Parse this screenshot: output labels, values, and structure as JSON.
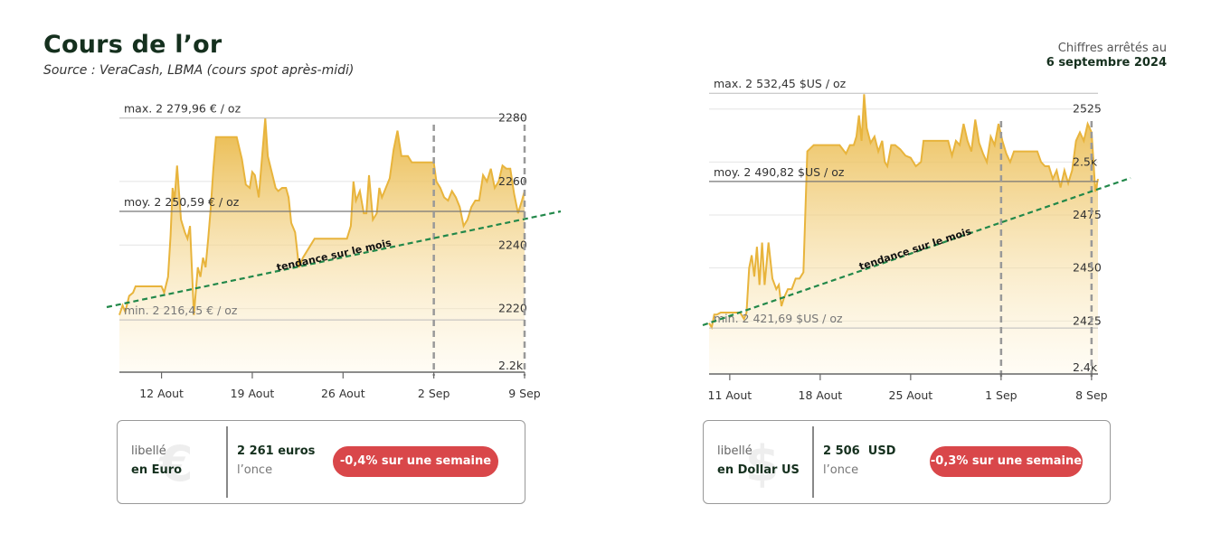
{
  "header": {
    "title": "Cours de l’or",
    "source": "Source : VeraCash, LBMA (cours spot après-midi)",
    "asof_line1": "Chiffres arrêtés au",
    "asof_line2": "6 septembre 2024"
  },
  "colors": {
    "gold": "#e8b43c",
    "trend": "#22884a",
    "badge": "#d9474a",
    "dark": "#15301e"
  },
  "panels": [
    {
      "max_label": "max. 2 279,96 € / oz",
      "avg_label": "moy. 2 250,59 € / oz",
      "min_label": "min. 2 216,45 € / oz",
      "trend_label": "tendance sur le mois",
      "box": {
        "label1": "libellé",
        "label2": "en Euro",
        "value": "2 261 euros",
        "unit": "l’once",
        "badge": "-0,4% sur une semaine",
        "ghost_icon": "euro-icon",
        "ghost": "€"
      }
    },
    {
      "max_label": "max. 2 532,45 $US / oz",
      "avg_label": "moy. 2 490,82 $US / oz",
      "min_label": "min. 2 421,69 $US / oz",
      "trend_label": "tendance sur le mois",
      "box": {
        "label1": "libellé",
        "label2": "en Dollar US",
        "value": "2 506  USD",
        "unit": "l’once",
        "badge": "-0,3% sur une semaine",
        "ghost_icon": "dollar-icon",
        "ghost": "$"
      }
    }
  ],
  "chart_data": [
    {
      "type": "area",
      "title": "",
      "currency": "EUR",
      "ylim": [
        2200,
        2283
      ],
      "yticks": [
        2200,
        2220,
        2240,
        2260,
        2280
      ],
      "ytick_labels": [
        "2.2k",
        "2220",
        "2240",
        "2260",
        "2280"
      ],
      "xticks": [
        {
          "x": 12,
          "label": "12 Aout"
        },
        {
          "x": 19,
          "label": "19 Aout"
        },
        {
          "x": 26,
          "label": "26 Aout"
        },
        {
          "x": 33,
          "label": "2 Sep"
        },
        {
          "x": 40,
          "label": "9 Sep"
        }
      ],
      "xlim": [
        8.75,
        40
      ],
      "x": [
        8.75,
        9.0,
        9.2,
        9.5,
        9.8,
        10.0,
        10.3,
        10.6,
        11.0,
        11.5,
        12.0,
        12.2,
        12.5,
        12.7,
        12.85,
        13.0,
        13.2,
        13.5,
        13.8,
        14.0,
        14.2,
        14.5,
        14.8,
        15.0,
        15.2,
        15.4,
        15.6,
        15.8,
        16.0,
        16.2,
        16.5,
        16.8,
        17.0,
        17.3,
        17.6,
        17.8,
        18.2,
        18.5,
        18.8,
        19.0,
        19.2,
        19.5,
        19.8,
        20.0,
        20.2,
        20.5,
        20.8,
        21.0,
        21.3,
        21.6,
        21.8,
        22.0,
        22.3,
        22.6,
        22.9,
        23.2,
        23.5,
        23.8,
        24.0,
        24.3,
        24.6,
        24.8,
        25.0,
        25.2,
        25.5,
        25.8,
        26.0,
        26.3,
        26.6,
        26.8,
        27.0,
        27.3,
        27.6,
        27.8,
        28.0,
        28.3,
        28.6,
        28.8,
        29.0,
        29.3,
        29.6,
        29.9,
        30.2,
        30.5,
        30.7,
        31.0,
        31.3,
        31.6,
        31.9,
        32.2,
        32.5,
        32.8,
        33.0,
        33.2,
        33.5,
        33.8,
        34.1,
        34.4,
        34.7,
        35.0,
        35.3,
        35.6,
        35.9,
        36.2,
        36.5,
        36.8,
        37.1,
        37.4,
        37.7,
        38.0,
        38.3,
        38.6,
        38.9,
        39.2,
        39.5,
        39.8,
        40.0
      ],
      "y": [
        2218,
        2221,
        2219,
        2224,
        2225,
        2227,
        2227,
        2227,
        2227,
        2227,
        2227,
        2225,
        2230,
        2243,
        2258,
        2254,
        2265,
        2248,
        2244,
        2242,
        2246,
        2218,
        2233,
        2230,
        2236,
        2233,
        2242,
        2252,
        2264,
        2274,
        2274,
        2274,
        2274,
        2274,
        2274,
        2274,
        2267,
        2259,
        2258,
        2263,
        2262,
        2255,
        2270,
        2280,
        2268,
        2263,
        2258,
        2257,
        2258,
        2258,
        2255,
        2247,
        2244,
        2233,
        2236,
        2238,
        2240,
        2242,
        2242,
        2242,
        2242,
        2242,
        2242,
        2242,
        2242,
        2242,
        2242,
        2242,
        2246,
        2260,
        2254,
        2257,
        2250,
        2250,
        2262,
        2248,
        2250,
        2258,
        2255,
        2258,
        2261,
        2270,
        2276,
        2268,
        2268,
        2268,
        2266,
        2266,
        2266,
        2266,
        2266,
        2266,
        2266,
        2260,
        2258,
        2255,
        2254,
        2257,
        2255,
        2252,
        2246,
        2248,
        2252,
        2254,
        2254,
        2262,
        2260,
        2264,
        2258,
        2260,
        2265,
        2264,
        2264,
        2256,
        2250,
        2254,
        2257
      ]
    },
    {
      "type": "area",
      "title": "",
      "currency": "USD",
      "ylim": [
        2400,
        2527
      ],
      "yticks": [
        2400,
        2425,
        2450,
        2475,
        2500,
        2525
      ],
      "ytick_labels": [
        "2.4k",
        "2425",
        "2450",
        "2475",
        "2.5k",
        "2525"
      ],
      "xticks": [
        {
          "x": 11,
          "label": "11 Aout"
        },
        {
          "x": 18,
          "label": "18 Aout"
        },
        {
          "x": 25,
          "label": "25 Aout"
        },
        {
          "x": 32,
          "label": "1 Sep"
        },
        {
          "x": 39,
          "label": "8 Sep"
        }
      ],
      "xlim": [
        9.4,
        39.5
      ],
      "x": [
        9.4,
        9.6,
        9.8,
        10.0,
        10.3,
        10.6,
        11.0,
        11.4,
        11.8,
        12.1,
        12.3,
        12.5,
        12.7,
        12.9,
        13.1,
        13.3,
        13.5,
        13.7,
        14.0,
        14.3,
        14.6,
        14.8,
        15.0,
        15.2,
        15.5,
        15.8,
        16.1,
        16.4,
        16.7,
        17.0,
        17.5,
        18.0,
        18.5,
        19.0,
        19.5,
        20.0,
        20.3,
        20.6,
        20.8,
        21.0,
        21.2,
        21.4,
        21.6,
        21.9,
        22.2,
        22.5,
        22.8,
        23.0,
        23.2,
        23.5,
        23.8,
        24.2,
        24.6,
        25.0,
        25.4,
        25.8,
        26.0,
        26.3,
        26.5,
        26.8,
        27.0,
        27.3,
        27.6,
        27.9,
        28.2,
        28.5,
        28.8,
        29.1,
        29.4,
        29.7,
        30.0,
        30.3,
        30.6,
        30.9,
        31.2,
        31.5,
        31.8,
        32.1,
        32.4,
        32.7,
        33.0,
        33.3,
        33.6,
        33.9,
        34.2,
        34.5,
        34.8,
        35.1,
        35.4,
        35.7,
        36.0,
        36.3,
        36.6,
        36.9,
        37.2,
        37.5,
        37.8,
        38.1,
        38.4,
        38.7,
        39.0,
        39.3,
        39.5
      ],
      "y": [
        2424,
        2422,
        2428,
        2428,
        2429,
        2429,
        2429,
        2429,
        2429,
        2426,
        2429,
        2450,
        2456,
        2446,
        2460,
        2442,
        2462,
        2442,
        2462,
        2445,
        2440,
        2442,
        2432,
        2436,
        2440,
        2440,
        2445,
        2445,
        2448,
        2505,
        2508,
        2508,
        2508,
        2508,
        2508,
        2504,
        2508,
        2508,
        2512,
        2522,
        2510,
        2532,
        2516,
        2509,
        2512,
        2505,
        2510,
        2500,
        2498,
        2508,
        2508,
        2506,
        2503,
        2502,
        2498,
        2500,
        2510,
        2510,
        2510,
        2510,
        2510,
        2510,
        2510,
        2510,
        2503,
        2510,
        2508,
        2518,
        2510,
        2505,
        2520,
        2509,
        2504,
        2500,
        2512,
        2508,
        2518,
        2510,
        2504,
        2500,
        2505,
        2505,
        2505,
        2505,
        2505,
        2505,
        2505,
        2500,
        2498,
        2498,
        2492,
        2496,
        2488,
        2496,
        2490,
        2496,
        2510,
        2514,
        2510,
        2518,
        2514,
        2486,
        2492
      ]
    }
  ]
}
